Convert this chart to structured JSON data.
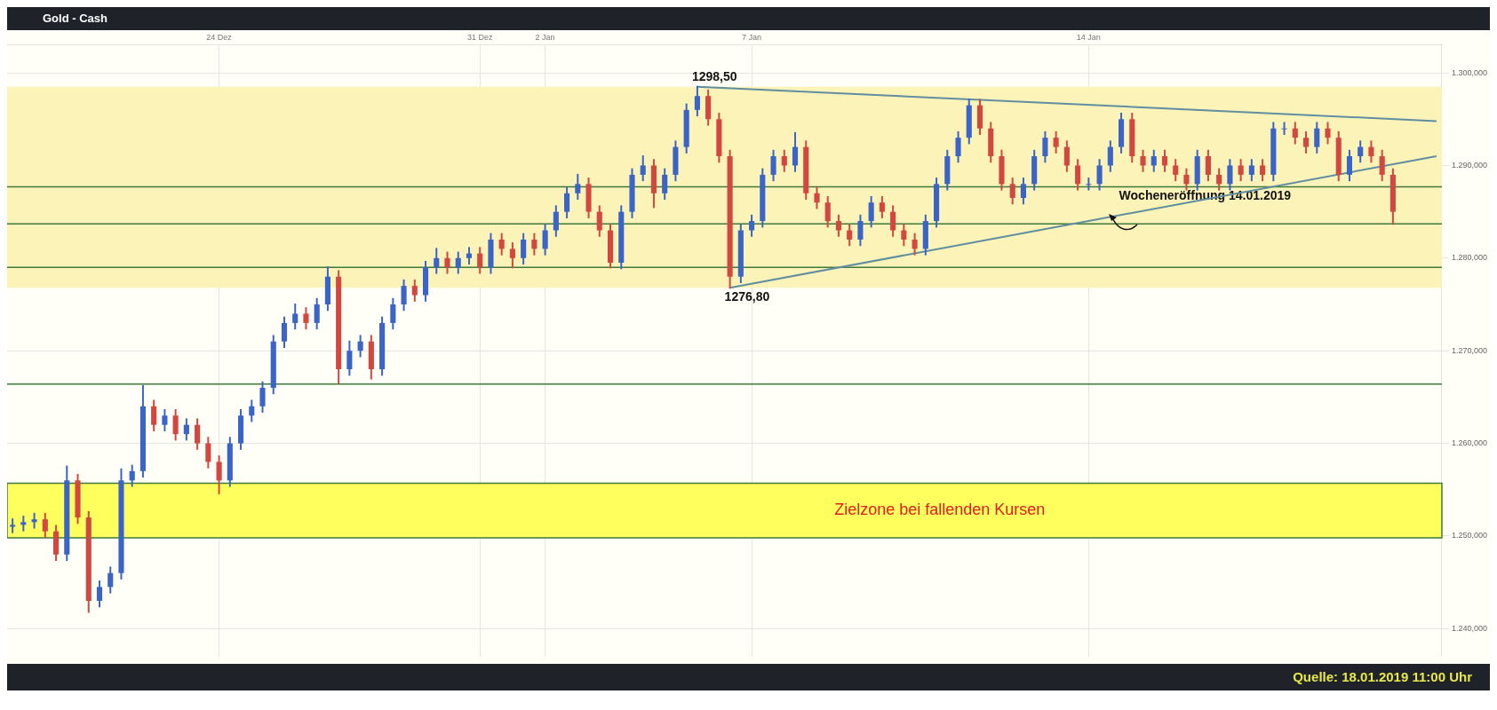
{
  "chart_data": {
    "type": "candlestick",
    "title": "Gold - Cash",
    "categories": [
      null,
      null,
      null,
      null,
      null,
      null,
      null,
      null,
      null,
      null,
      null,
      null,
      null,
      null,
      null,
      null,
      null,
      null,
      null,
      "24 Dez",
      null,
      null,
      null,
      null,
      null,
      null,
      null,
      null,
      null,
      null,
      null,
      null,
      null,
      null,
      null,
      null,
      null,
      null,
      null,
      null,
      null,
      null,
      null,
      "31 Dez",
      null,
      null,
      null,
      null,
      null,
      "2 Jan",
      null,
      null,
      null,
      null,
      null,
      null,
      null,
      null,
      null,
      null,
      null,
      null,
      null,
      null,
      null,
      null,
      null,
      null,
      "7 Jan",
      null,
      null,
      null,
      null,
      null,
      null,
      null,
      null,
      null,
      null,
      null,
      null,
      null,
      null,
      null,
      null,
      null,
      null,
      null,
      null,
      null,
      null,
      null,
      null,
      null,
      null,
      null,
      null,
      null,
      null,
      "14 Jan",
      null,
      null,
      null,
      null,
      null,
      null,
      null,
      null,
      null,
      null,
      null,
      null,
      null,
      null,
      null,
      null,
      null,
      null,
      null,
      null,
      null,
      null,
      null,
      null,
      null,
      null,
      null,
      null,
      null,
      null,
      null,
      null
    ],
    "ohlc": [
      [
        1251,
        1251.8,
        1250.4,
        1251.2
      ],
      [
        1251.2,
        1252.1,
        1250.6,
        1251.5
      ],
      [
        1251.5,
        1252.4,
        1250.9,
        1251.8
      ],
      [
        1251.8,
        1252.4,
        1249.9,
        1250.5
      ],
      [
        1250.5,
        1251.1,
        1247.4,
        1248
      ],
      [
        1248,
        1257.5,
        1247.4,
        1256
      ],
      [
        1256,
        1256.6,
        1251.4,
        1252
      ],
      [
        1252,
        1252.6,
        1241.8,
        1243
      ],
      [
        1243,
        1245.1,
        1242.4,
        1244.5
      ],
      [
        1244.5,
        1246.6,
        1243.9,
        1246
      ],
      [
        1246,
        1257.2,
        1245.4,
        1256
      ],
      [
        1256,
        1257.6,
        1255.4,
        1257
      ],
      [
        1257,
        1266.2,
        1256.4,
        1264
      ],
      [
        1264,
        1264.6,
        1261.4,
        1262
      ],
      [
        1262,
        1263.6,
        1261.4,
        1263
      ],
      [
        1263,
        1263.6,
        1260.4,
        1261
      ],
      [
        1261,
        1262.6,
        1260.4,
        1262
      ],
      [
        1262,
        1262.6,
        1259.4,
        1260
      ],
      [
        1260,
        1260.6,
        1257.4,
        1258
      ],
      [
        1258,
        1258.6,
        1254.6,
        1256
      ],
      [
        1256,
        1260.6,
        1255.4,
        1260
      ],
      [
        1260,
        1263.6,
        1259.4,
        1263
      ],
      [
        1263,
        1264.6,
        1262.4,
        1264
      ],
      [
        1264,
        1266.6,
        1263.4,
        1266
      ],
      [
        1266,
        1271.6,
        1265.4,
        1271
      ],
      [
        1271,
        1273.6,
        1270.4,
        1273
      ],
      [
        1273,
        1275,
        1272.4,
        1274
      ],
      [
        1274,
        1274.6,
        1272.4,
        1273
      ],
      [
        1273,
        1275.6,
        1272.4,
        1275
      ],
      [
        1275,
        1279,
        1274.4,
        1278
      ],
      [
        1278,
        1278.6,
        1266.5,
        1268
      ],
      [
        1268,
        1271,
        1267.4,
        1270
      ],
      [
        1270,
        1271.6,
        1269.4,
        1271
      ],
      [
        1271,
        1271.6,
        1267,
        1268
      ],
      [
        1268,
        1273.6,
        1267.4,
        1273
      ],
      [
        1273,
        1275.6,
        1272.4,
        1275
      ],
      [
        1275,
        1277.6,
        1274.4,
        1277
      ],
      [
        1277,
        1277.6,
        1275.4,
        1276
      ],
      [
        1276,
        1279.6,
        1275.4,
        1279
      ],
      [
        1279,
        1281,
        1278.4,
        1280
      ],
      [
        1280,
        1280.6,
        1278.4,
        1279
      ],
      [
        1279,
        1280.6,
        1278.4,
        1280
      ],
      [
        1280,
        1281.1,
        1279.4,
        1280.5
      ],
      [
        1280.5,
        1281.1,
        1278.4,
        1279
      ],
      [
        1279,
        1282.6,
        1278.4,
        1282
      ],
      [
        1282,
        1282.6,
        1280.4,
        1281
      ],
      [
        1281,
        1281.6,
        1279,
        1280
      ],
      [
        1280,
        1282.6,
        1279.4,
        1282
      ],
      [
        1282,
        1282.6,
        1280.4,
        1281
      ],
      [
        1281,
        1283.6,
        1280.4,
        1283
      ],
      [
        1283,
        1285.6,
        1282.4,
        1285
      ],
      [
        1285,
        1287.6,
        1284.4,
        1287
      ],
      [
        1287,
        1289,
        1286.4,
        1288
      ],
      [
        1288,
        1288.6,
        1284.4,
        1285
      ],
      [
        1285,
        1285.6,
        1282.4,
        1283
      ],
      [
        1283,
        1283.6,
        1279,
        1279.5
      ],
      [
        1279.5,
        1285.6,
        1278.9,
        1285
      ],
      [
        1285,
        1289.6,
        1284.4,
        1289
      ],
      [
        1289,
        1291,
        1288.4,
        1290
      ],
      [
        1290,
        1290.6,
        1285.5,
        1287
      ],
      [
        1287,
        1289.6,
        1286.4,
        1289
      ],
      [
        1289,
        1292.6,
        1288.4,
        1292
      ],
      [
        1292,
        1296.6,
        1291.4,
        1296
      ],
      [
        1296,
        1298.5,
        1295.4,
        1297.5
      ],
      [
        1297.5,
        1298.1,
        1294.4,
        1295
      ],
      [
        1295,
        1295.6,
        1290.4,
        1291
      ],
      [
        1291,
        1291.6,
        1276.8,
        1278
      ],
      [
        1278,
        1283.6,
        1277.4,
        1283
      ],
      [
        1283,
        1284.6,
        1282.4,
        1284
      ],
      [
        1284,
        1289.6,
        1283.4,
        1289
      ],
      [
        1289,
        1291.6,
        1288.4,
        1291
      ],
      [
        1291,
        1291.6,
        1289.4,
        1290
      ],
      [
        1290,
        1293.5,
        1289.4,
        1292
      ],
      [
        1292,
        1292.6,
        1286.4,
        1287
      ],
      [
        1287,
        1287.6,
        1285.4,
        1286
      ],
      [
        1286,
        1286.6,
        1283.4,
        1284
      ],
      [
        1284,
        1284.6,
        1282.4,
        1283
      ],
      [
        1283,
        1283.6,
        1281.4,
        1282
      ],
      [
        1282,
        1284.6,
        1281.4,
        1284
      ],
      [
        1284,
        1286.6,
        1283.4,
        1286
      ],
      [
        1286,
        1286.6,
        1284.4,
        1285
      ],
      [
        1285,
        1285.6,
        1282.4,
        1283
      ],
      [
        1283,
        1283.6,
        1281.4,
        1282
      ],
      [
        1282,
        1282.6,
        1280.4,
        1281
      ],
      [
        1281,
        1284.6,
        1280.4,
        1284
      ],
      [
        1284,
        1288.6,
        1283.4,
        1288
      ],
      [
        1288,
        1291.6,
        1287.4,
        1291
      ],
      [
        1291,
        1293.6,
        1290.4,
        1293
      ],
      [
        1293,
        1297.1,
        1292.4,
        1296.5
      ],
      [
        1296.5,
        1297.1,
        1293.4,
        1294
      ],
      [
        1294,
        1294.6,
        1290.4,
        1291
      ],
      [
        1291,
        1291.6,
        1287.4,
        1288
      ],
      [
        1288,
        1288.6,
        1285.9,
        1286.5
      ],
      [
        1286.5,
        1288.6,
        1285.9,
        1288
      ],
      [
        1288,
        1291.6,
        1287.4,
        1291
      ],
      [
        1291,
        1293.6,
        1290.4,
        1293
      ],
      [
        1293,
        1293.6,
        1291.4,
        1292
      ],
      [
        1292,
        1292.6,
        1289.4,
        1290
      ],
      [
        1290,
        1290.6,
        1287.4,
        1288
      ],
      [
        1288,
        1288.6,
        1287.4,
        1288
      ],
      [
        1288,
        1290.6,
        1287.4,
        1290
      ],
      [
        1290,
        1292.6,
        1289.4,
        1292
      ],
      [
        1292,
        1295.6,
        1291.4,
        1295
      ],
      [
        1295,
        1295.6,
        1290.4,
        1291
      ],
      [
        1291,
        1291.6,
        1289.4,
        1290
      ],
      [
        1290,
        1291.6,
        1289.4,
        1291
      ],
      [
        1291,
        1291.6,
        1289.4,
        1290
      ],
      [
        1290,
        1290.6,
        1288.4,
        1289
      ],
      [
        1289,
        1289.6,
        1287.4,
        1288
      ],
      [
        1288,
        1291.6,
        1287.4,
        1291
      ],
      [
        1291,
        1291.6,
        1288.4,
        1289
      ],
      [
        1289,
        1289.6,
        1287.4,
        1288
      ],
      [
        1288,
        1290.6,
        1287.4,
        1290
      ],
      [
        1290,
        1290.6,
        1288.4,
        1289
      ],
      [
        1289,
        1290.6,
        1288.4,
        1290
      ],
      [
        1290,
        1290.6,
        1288.4,
        1289
      ],
      [
        1289,
        1294.6,
        1288.4,
        1294
      ],
      [
        1294,
        1294.6,
        1293.4,
        1294
      ],
      [
        1294,
        1294.6,
        1292.4,
        1293
      ],
      [
        1293,
        1293.6,
        1291.4,
        1292
      ],
      [
        1292,
        1294.6,
        1291.4,
        1294
      ],
      [
        1294,
        1294.6,
        1292.4,
        1293
      ],
      [
        1293,
        1293.6,
        1288.4,
        1289
      ],
      [
        1289,
        1291.6,
        1288.4,
        1291
      ],
      [
        1291,
        1292.6,
        1290.4,
        1292
      ],
      [
        1292,
        1292.6,
        1290.4,
        1291
      ],
      [
        1291,
        1291.6,
        1288.4,
        1289
      ],
      [
        1289,
        1289.6,
        1283.7,
        1285
      ],
      null,
      null,
      null,
      null
    ],
    "series": [
      {
        "type": "line",
        "color": "#5f8ea0",
        "values": [
          null,
          null,
          null,
          null,
          null,
          null,
          null,
          null,
          null,
          null,
          null,
          null,
          null,
          null,
          null,
          null,
          null,
          null,
          null,
          null,
          null,
          null,
          null,
          null,
          null,
          null,
          null,
          null,
          null,
          null,
          null,
          null,
          null,
          null,
          null,
          null,
          null,
          null,
          null,
          null,
          null,
          null,
          null,
          null,
          null,
          null,
          null,
          null,
          null,
          null,
          null,
          null,
          null,
          null,
          null,
          null,
          null,
          null,
          null,
          null,
          null,
          null,
          null,
          1298.5,
          null,
          null,
          null,
          null,
          null,
          null,
          null,
          null,
          null,
          null,
          null,
          null,
          null,
          null,
          null,
          null,
          null,
          null,
          null,
          null,
          null,
          null,
          null,
          null,
          null,
          null,
          null,
          null,
          null,
          null,
          null,
          null,
          null,
          null,
          null,
          null,
          null,
          null,
          null,
          null,
          null,
          null,
          null,
          null,
          null,
          null,
          null,
          null,
          null,
          null,
          null,
          null,
          null,
          null,
          null,
          null,
          null,
          null,
          null,
          null,
          null,
          null,
          null,
          null,
          null,
          null,
          null,
          1294.8
        ]
      },
      {
        "type": "line",
        "color": "#5f8ea0",
        "values": [
          null,
          null,
          null,
          null,
          null,
          null,
          null,
          null,
          null,
          null,
          null,
          null,
          null,
          null,
          null,
          null,
          null,
          null,
          null,
          null,
          null,
          null,
          null,
          null,
          null,
          null,
          null,
          null,
          null,
          null,
          null,
          null,
          null,
          null,
          null,
          null,
          null,
          null,
          null,
          null,
          null,
          null,
          null,
          null,
          null,
          null,
          null,
          null,
          null,
          null,
          null,
          null,
          null,
          null,
          null,
          null,
          null,
          null,
          null,
          null,
          null,
          null,
          null,
          null,
          null,
          null,
          1276.8,
          null,
          null,
          null,
          null,
          null,
          null,
          null,
          null,
          null,
          null,
          null,
          null,
          null,
          null,
          null,
          null,
          null,
          null,
          null,
          null,
          null,
          null,
          null,
          null,
          null,
          null,
          null,
          null,
          null,
          null,
          null,
          null,
          null,
          null,
          null,
          null,
          null,
          null,
          null,
          null,
          null,
          null,
          null,
          null,
          null,
          null,
          null,
          null,
          null,
          null,
          null,
          null,
          null,
          null,
          null,
          null,
          null,
          null,
          null,
          null,
          null,
          null,
          null,
          null,
          1291
        ]
      }
    ],
    "ylim": [
      1237,
      1303
    ],
    "yticks": [
      {
        "value": 1240,
        "label": "1.240,000"
      },
      {
        "value": 1250,
        "label": "1.250,000"
      },
      {
        "value": 1260,
        "label": "1.260,000"
      },
      {
        "value": 1270,
        "label": "1.270,000"
      },
      {
        "value": 1280,
        "label": "1.280,000"
      },
      {
        "value": 1290,
        "label": "1.290,000"
      },
      {
        "value": 1300,
        "label": "1.300,000"
      }
    ],
    "bands": [
      {
        "axis": "y",
        "from": 1276.8,
        "to": 1298.5,
        "color": "#fbf3b8"
      },
      {
        "axis": "y",
        "from": 1249.8,
        "to": 1255.7,
        "label": "Zielzone bei fallenden Kursen",
        "color": "#ffff5e"
      }
    ],
    "ref_lines": [
      {
        "axis": "y",
        "value": 1279,
        "color": "#3f7a3a"
      },
      {
        "axis": "y",
        "value": 1266.4,
        "color": "#3f7a3a"
      },
      {
        "axis": "y",
        "value": 1287.7,
        "label": "Wocheneröffnung 14.01.2019",
        "color": "#3f7a3a"
      },
      {
        "axis": "y",
        "value": 1283.7,
        "color": "#3f7a3a"
      }
    ],
    "annotations": [
      {
        "text": "1298,50",
        "y": 1298.5
      },
      {
        "text": "1276,80",
        "y": 1276.8
      },
      "Quelle: 18.01.2019 11:00 Uhr"
    ],
    "grid": true,
    "legend": false
  }
}
